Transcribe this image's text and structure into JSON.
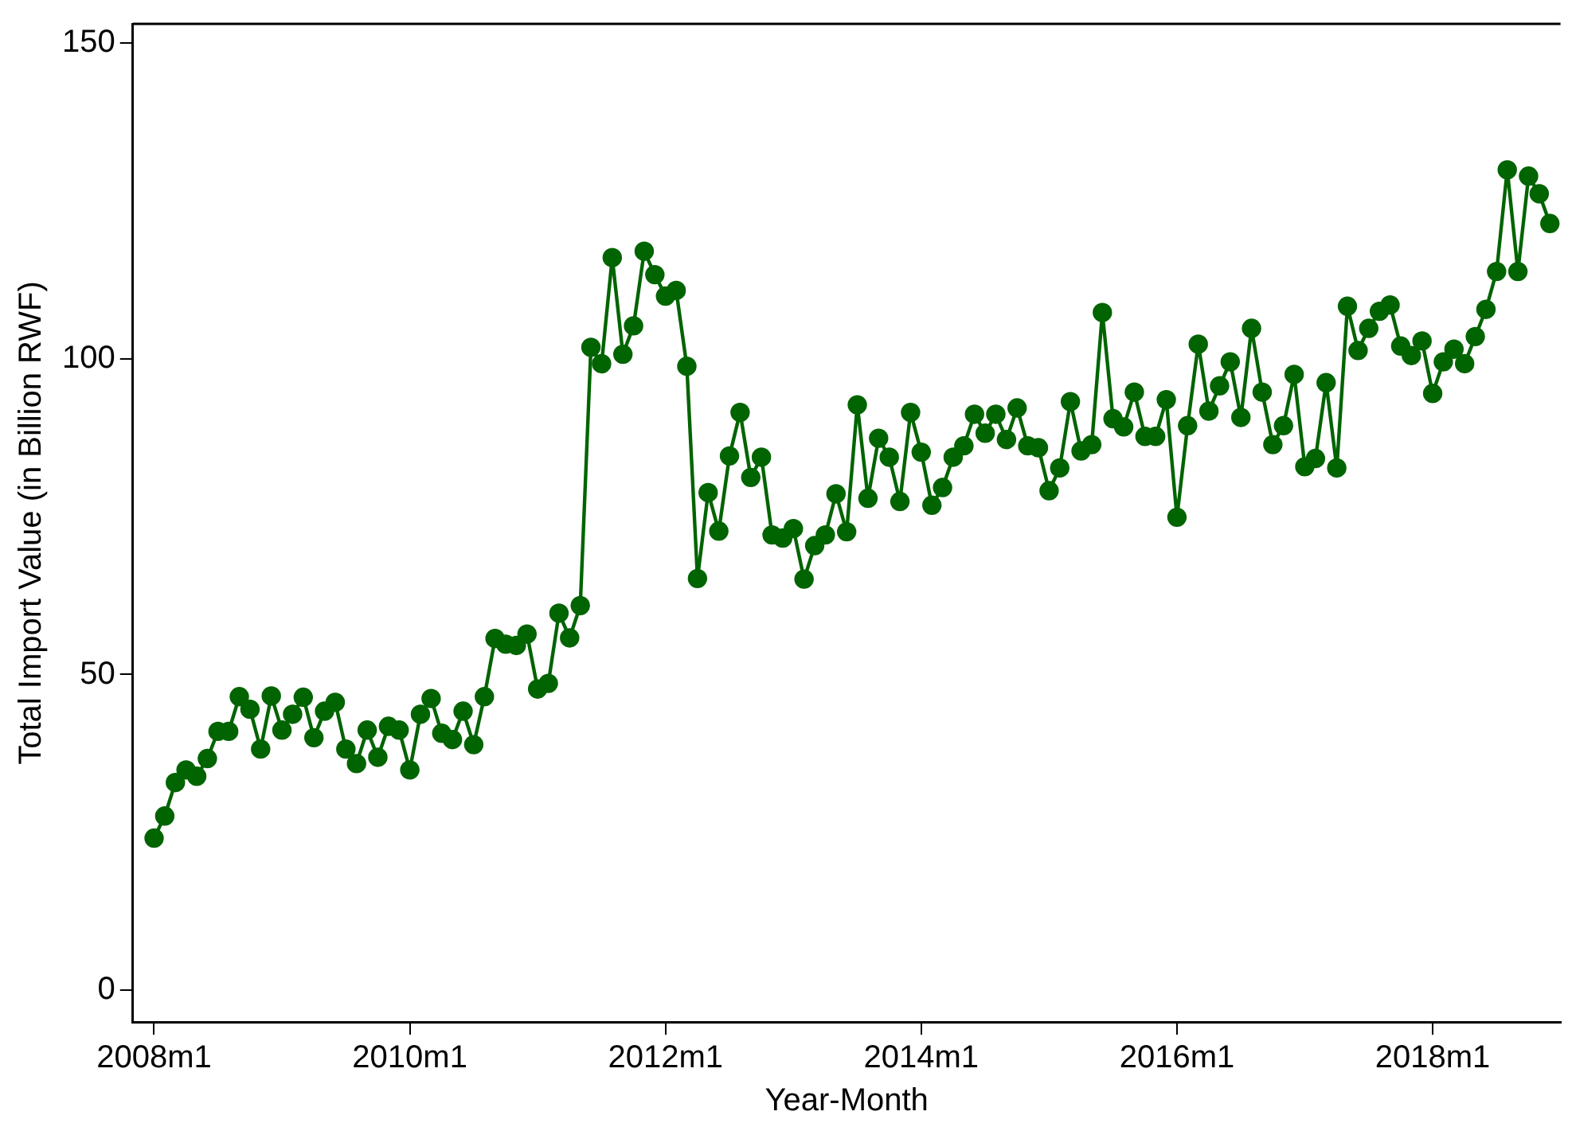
{
  "chart_data": {
    "type": "line",
    "xlabel": "Year-Month",
    "ylabel": "Total Import Value (in Billion RWF)",
    "x": [
      "2008-01",
      "2008-02",
      "2008-03",
      "2008-04",
      "2008-05",
      "2008-06",
      "2008-07",
      "2008-08",
      "2008-09",
      "2008-10",
      "2008-11",
      "2008-12",
      "2009-01",
      "2009-02",
      "2009-03",
      "2009-04",
      "2009-05",
      "2009-06",
      "2009-07",
      "2009-08",
      "2009-09",
      "2009-10",
      "2009-11",
      "2009-12",
      "2010-01",
      "2010-02",
      "2010-03",
      "2010-04",
      "2010-05",
      "2010-06",
      "2010-07",
      "2010-08",
      "2010-09",
      "2010-10",
      "2010-11",
      "2010-12",
      "2011-01",
      "2011-02",
      "2011-03",
      "2011-04",
      "2011-05",
      "2011-06",
      "2011-07",
      "2011-08",
      "2011-09",
      "2011-10",
      "2011-11",
      "2011-12",
      "2012-01",
      "2012-02",
      "2012-03",
      "2012-04",
      "2012-05",
      "2012-06",
      "2012-07",
      "2012-08",
      "2012-09",
      "2012-10",
      "2012-11",
      "2012-12",
      "2013-01",
      "2013-02",
      "2013-03",
      "2013-04",
      "2013-05",
      "2013-06",
      "2013-07",
      "2013-08",
      "2013-09",
      "2013-10",
      "2013-11",
      "2013-12",
      "2014-01",
      "2014-02",
      "2014-03",
      "2014-04",
      "2014-05",
      "2014-06",
      "2014-07",
      "2014-08",
      "2014-09",
      "2014-10",
      "2014-11",
      "2014-12",
      "2015-01",
      "2015-02",
      "2015-03",
      "2015-04",
      "2015-05",
      "2015-06",
      "2015-07",
      "2015-08",
      "2015-09",
      "2015-10",
      "2015-11",
      "2015-12",
      "2016-01",
      "2016-02",
      "2016-03",
      "2016-04",
      "2016-05",
      "2016-06",
      "2016-07",
      "2016-08",
      "2016-09",
      "2016-10",
      "2016-11",
      "2016-12",
      "2017-01",
      "2017-02",
      "2017-03",
      "2017-04",
      "2017-05",
      "2017-06",
      "2017-07",
      "2017-08",
      "2017-09",
      "2017-10",
      "2017-11",
      "2017-12",
      "2018-01",
      "2018-02",
      "2018-03",
      "2018-04",
      "2018-05",
      "2018-06",
      "2018-07",
      "2018-08",
      "2018-09",
      "2018-10",
      "2018-11",
      "2018-12"
    ],
    "series": [
      {
        "color": "#006400",
        "values": [
          24.1,
          27.6,
          32.9,
          34.9,
          33.9,
          36.7,
          41,
          41,
          46.5,
          44.5,
          38.2,
          46.6,
          41.2,
          43.7,
          46.4,
          40,
          44.2,
          45.6,
          38.2,
          35.9,
          41.2,
          36.9,
          41.8,
          41.2,
          34.9,
          43.7,
          46.2,
          40.7,
          39.7,
          44.2,
          38.9,
          46.5,
          55.7,
          54.8,
          54.6,
          56.4,
          47.7,
          48.6,
          59.7,
          55.8,
          60.9,
          101.8,
          99.2,
          116,
          100.7,
          105.2,
          117,
          113.3,
          109.9,
          110.8,
          98.8,
          65.2,
          78.8,
          72.7,
          84.6,
          91.5,
          81.2,
          84.4,
          72.1,
          71.6,
          73.1,
          65.1,
          70.4,
          72.1,
          78.6,
          72.6,
          92.7,
          77.9,
          87.4,
          84.4,
          77.4,
          91.5,
          85.2,
          76.8,
          79.6,
          84.4,
          86.2,
          91.2,
          88.2,
          91.2,
          87.2,
          92.2,
          86.2,
          85.9,
          79.1,
          82.7,
          93.2,
          85.4,
          86.4,
          107.3,
          90.5,
          89.2,
          94.7,
          87.7,
          87.7,
          93.5,
          74.9,
          89.4,
          102.3,
          91.7,
          95.7,
          99.5,
          90.7,
          104.8,
          94.7,
          86.4,
          89.4,
          97.5,
          82.9,
          84.2,
          96.2,
          82.7,
          108.3,
          101.3,
          104.8,
          107.5,
          108.5,
          102,
          100.5,
          102.8,
          94.5,
          99.5,
          101.5,
          99.2,
          103.5,
          107.8,
          113.8,
          129.9,
          113.8,
          128.9,
          126.1,
          121.4
        ]
      }
    ],
    "xlim": [
      "2007-11",
      "2019-01"
    ],
    "xticks": [
      {
        "value": "2008-01",
        "label": "2008m1"
      },
      {
        "value": "2010-01",
        "label": "2010m1"
      },
      {
        "value": "2012-01",
        "label": "2012m1"
      },
      {
        "value": "2014-01",
        "label": "2014m1"
      },
      {
        "value": "2016-01",
        "label": "2016m1"
      },
      {
        "value": "2018-01",
        "label": "2018m1"
      }
    ],
    "ylim": [
      -5,
      153
    ],
    "yticks": [
      0,
      50,
      100,
      150
    ],
    "grid": false,
    "legend": false,
    "marker": "circle",
    "line_style": "solid"
  }
}
